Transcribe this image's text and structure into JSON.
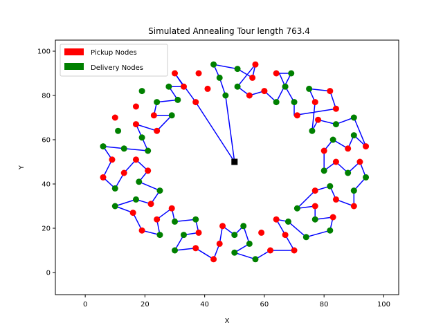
{
  "chart_data": {
    "type": "scatter",
    "title": "Simulated Annealing  Tour length 763.4",
    "xlabel": "X",
    "ylabel": "Y",
    "xlim": [
      -10,
      105
    ],
    "ylim": [
      -10,
      105
    ],
    "xticks": [
      0,
      20,
      40,
      60,
      80,
      100
    ],
    "yticks": [
      0,
      20,
      40,
      60,
      80,
      100
    ],
    "grid": false,
    "legend_position": "top-left",
    "colors": {
      "pickup": "#ff0000",
      "delivery": "#008000",
      "route": "#0000ff",
      "depot": "#000000"
    },
    "legend": [
      {
        "label": "Pickup Nodes",
        "color": "#ff0000"
      },
      {
        "label": "Delivery Nodes",
        "color": "#008000"
      }
    ],
    "depot": [
      50,
      50
    ],
    "route": [
      [
        50,
        50
      ],
      [
        37,
        77
      ],
      [
        30,
        90
      ],
      [
        33,
        84
      ],
      [
        28,
        84
      ],
      [
        31,
        78
      ],
      [
        24,
        77
      ],
      [
        23,
        71
      ],
      [
        29,
        71
      ],
      [
        24,
        64
      ],
      [
        17,
        67
      ],
      [
        19,
        61
      ],
      [
        21,
        55
      ],
      [
        13,
        56
      ],
      [
        6,
        57
      ],
      [
        9,
        51
      ],
      [
        6,
        43
      ],
      [
        10,
        38
      ],
      [
        13,
        45
      ],
      [
        17,
        51
      ],
      [
        21,
        46
      ],
      [
        18,
        41
      ],
      [
        25,
        37
      ],
      [
        22,
        31
      ],
      [
        17,
        33
      ],
      [
        10,
        30
      ],
      [
        16,
        27
      ],
      [
        19,
        19
      ],
      [
        25,
        17
      ],
      [
        24,
        24
      ],
      [
        29,
        29
      ],
      [
        30,
        23
      ],
      [
        37,
        24
      ],
      [
        38,
        18
      ],
      [
        33,
        17
      ],
      [
        30,
        10
      ],
      [
        37,
        11
      ],
      [
        43,
        6
      ],
      [
        45,
        13
      ],
      [
        46,
        21
      ],
      [
        50,
        17
      ],
      [
        53,
        21
      ],
      [
        55,
        13
      ],
      [
        50,
        9
      ],
      [
        57,
        6
      ],
      [
        62,
        10
      ],
      [
        70,
        10
      ],
      [
        67,
        17
      ],
      [
        64,
        24
      ],
      [
        68,
        23
      ],
      [
        74,
        16
      ],
      [
        82,
        19
      ],
      [
        83,
        25
      ],
      [
        77,
        24
      ],
      [
        77,
        30
      ],
      [
        71,
        29
      ],
      [
        77,
        37
      ],
      [
        82,
        39
      ],
      [
        84,
        33
      ],
      [
        90,
        30
      ],
      [
        90,
        37
      ],
      [
        94,
        43
      ],
      [
        92,
        50
      ],
      [
        88,
        45
      ],
      [
        84,
        50
      ],
      [
        80,
        46
      ],
      [
        80,
        55
      ],
      [
        83,
        60
      ],
      [
        88,
        56
      ],
      [
        90,
        62
      ],
      [
        94,
        57
      ],
      [
        90,
        70
      ],
      [
        84,
        67
      ],
      [
        78,
        69
      ],
      [
        76,
        64
      ],
      [
        77,
        77
      ],
      [
        75,
        83
      ],
      [
        82,
        82
      ],
      [
        84,
        74
      ],
      [
        70,
        71
      ],
      [
        70,
        77
      ],
      [
        67,
        84
      ],
      [
        65,
        90
      ],
      [
        69,
        90
      ],
      [
        64,
        77
      ],
      [
        60,
        82
      ],
      [
        55,
        80
      ],
      [
        51,
        84
      ],
      [
        57,
        94
      ],
      [
        56,
        88
      ],
      [
        51,
        92
      ],
      [
        43,
        94
      ],
      [
        45,
        88
      ],
      [
        47,
        80
      ],
      [
        50,
        50
      ]
    ],
    "pickup_nodes": [
      [
        37,
        77
      ],
      [
        30,
        90
      ],
      [
        33,
        84
      ],
      [
        41,
        83
      ],
      [
        38,
        90
      ],
      [
        23,
        71
      ],
      [
        24,
        64
      ],
      [
        17,
        67
      ],
      [
        10,
        70
      ],
      [
        17,
        75
      ],
      [
        9,
        51
      ],
      [
        6,
        43
      ],
      [
        13,
        45
      ],
      [
        17,
        51
      ],
      [
        21,
        46
      ],
      [
        22,
        31
      ],
      [
        16,
        27
      ],
      [
        19,
        19
      ],
      [
        24,
        24
      ],
      [
        29,
        29
      ],
      [
        38,
        18
      ],
      [
        37,
        11
      ],
      [
        43,
        6
      ],
      [
        45,
        13
      ],
      [
        46,
        21
      ],
      [
        57,
        94
      ],
      [
        56,
        88
      ],
      [
        55,
        80
      ],
      [
        60,
        82
      ],
      [
        64,
        90
      ],
      [
        71,
        71
      ],
      [
        77,
        77
      ],
      [
        82,
        82
      ],
      [
        84,
        74
      ],
      [
        78,
        69
      ],
      [
        80,
        55
      ],
      [
        84,
        50
      ],
      [
        88,
        56
      ],
      [
        94,
        57
      ],
      [
        92,
        50
      ],
      [
        77,
        37
      ],
      [
        84,
        33
      ],
      [
        90,
        30
      ],
      [
        77,
        30
      ],
      [
        83,
        25
      ],
      [
        64,
        24
      ],
      [
        67,
        17
      ],
      [
        70,
        10
      ],
      [
        62,
        10
      ],
      [
        59,
        18
      ]
    ],
    "delivery_nodes": [
      [
        43,
        94
      ],
      [
        45,
        88
      ],
      [
        47,
        80
      ],
      [
        28,
        84
      ],
      [
        31,
        78
      ],
      [
        24,
        77
      ],
      [
        29,
        71
      ],
      [
        19,
        82
      ],
      [
        11,
        64
      ],
      [
        19,
        61
      ],
      [
        21,
        55
      ],
      [
        13,
        56
      ],
      [
        6,
        57
      ],
      [
        10,
        38
      ],
      [
        18,
        41
      ],
      [
        25,
        37
      ],
      [
        17,
        33
      ],
      [
        10,
        30
      ],
      [
        25,
        17
      ],
      [
        30,
        23
      ],
      [
        37,
        24
      ],
      [
        33,
        17
      ],
      [
        30,
        10
      ],
      [
        50,
        17
      ],
      [
        53,
        21
      ],
      [
        55,
        13
      ],
      [
        50,
        9
      ],
      [
        57,
        6
      ],
      [
        51,
        92
      ],
      [
        51,
        84
      ],
      [
        64,
        77
      ],
      [
        67,
        84
      ],
      [
        69,
        90
      ],
      [
        70,
        77
      ],
      [
        75,
        83
      ],
      [
        76,
        64
      ],
      [
        84,
        67
      ],
      [
        90,
        70
      ],
      [
        83,
        60
      ],
      [
        90,
        62
      ],
      [
        80,
        46
      ],
      [
        88,
        45
      ],
      [
        94,
        43
      ],
      [
        90,
        37
      ],
      [
        82,
        39
      ],
      [
        71,
        29
      ],
      [
        77,
        24
      ],
      [
        82,
        19
      ],
      [
        74,
        16
      ],
      [
        68,
        23
      ]
    ]
  }
}
